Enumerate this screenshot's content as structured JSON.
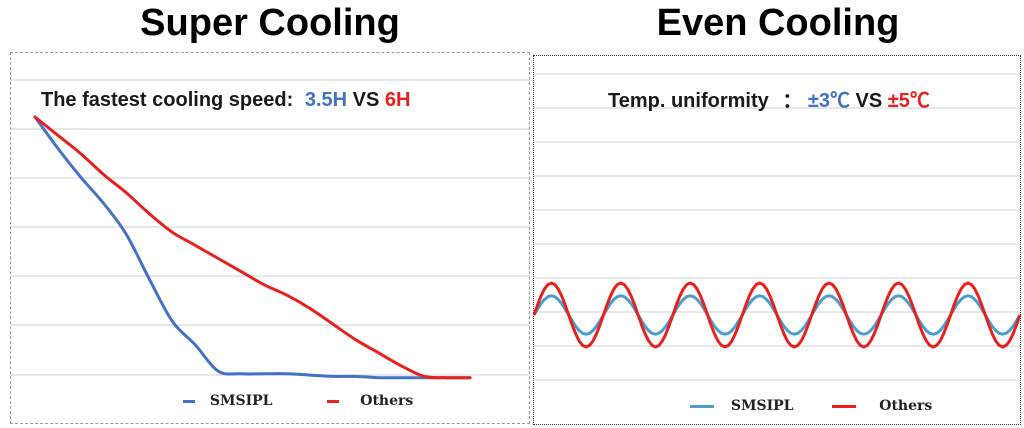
{
  "left": {
    "heading": "Super Cooling",
    "subtitle": {
      "prefix": "The fastest cooling speed:",
      "value_a": "3.5H",
      "vs": "VS",
      "value_b": "6H"
    },
    "legend": [
      "SMSIPL",
      "Others"
    ]
  },
  "right": {
    "heading": "Even Cooling",
    "subtitle": {
      "prefix": "Temp. uniformity",
      "separator": "：",
      "value_a": "±3℃",
      "vs": "VS",
      "value_b": "±5℃"
    },
    "legend": [
      "SMSIPL",
      "Others"
    ]
  },
  "colors": {
    "smsipl_left": "#4472c4",
    "smsipl_right": "#4a9fd0",
    "others": "#e8211e",
    "grid": "#d0d0d0"
  },
  "chart_data": [
    {
      "type": "line",
      "title": "Super Cooling",
      "subtitle": "The fastest cooling speed: 3.5H VS 6H",
      "xlabel": "",
      "ylabel": "",
      "grid": true,
      "legend": "bottom",
      "xlim": [
        0,
        10
      ],
      "ylim": [
        0,
        100
      ],
      "series": [
        {
          "name": "SMSIPL",
          "color": "#4472c4",
          "x": [
            0,
            0.5,
            1,
            1.5,
            2,
            2.5,
            3,
            3.5,
            4,
            4.5,
            5,
            5.5,
            6,
            6.5,
            7,
            7.5,
            8,
            8.5,
            9,
            9.5
          ],
          "y": [
            100,
            88,
            77,
            67,
            55,
            38,
            22,
            13,
            3,
            2,
            2,
            2,
            1.5,
            1,
            1,
            0.5,
            0.5,
            0.5,
            0.5,
            0.5
          ]
        },
        {
          "name": "Others",
          "color": "#e8211e",
          "x": [
            0,
            0.5,
            1,
            1.5,
            2,
            2.5,
            3,
            3.5,
            4,
            4.5,
            5,
            5.5,
            6,
            6.5,
            7,
            7.5,
            8,
            8.5,
            9,
            9.5
          ],
          "y": [
            100,
            93,
            86,
            78,
            71,
            63,
            56,
            51,
            46,
            41,
            36,
            32,
            27,
            21,
            15,
            10,
            5,
            1,
            0.5,
            0.5
          ]
        }
      ]
    },
    {
      "type": "line",
      "title": "Even Cooling",
      "subtitle": "Temp. uniformity ：±3℃ VS ±5℃",
      "xlabel": "",
      "ylabel": "",
      "grid": true,
      "legend": "bottom",
      "xlim": [
        0,
        7
      ],
      "ylim": [
        -8,
        8
      ],
      "series": [
        {
          "name": "SMSIPL",
          "color": "#4a9fd0",
          "amplitude": 3,
          "cycles": 7,
          "phase": 0
        },
        {
          "name": "Others",
          "color": "#e8211e",
          "amplitude": 5,
          "cycles": 7,
          "phase": 0
        }
      ]
    }
  ]
}
